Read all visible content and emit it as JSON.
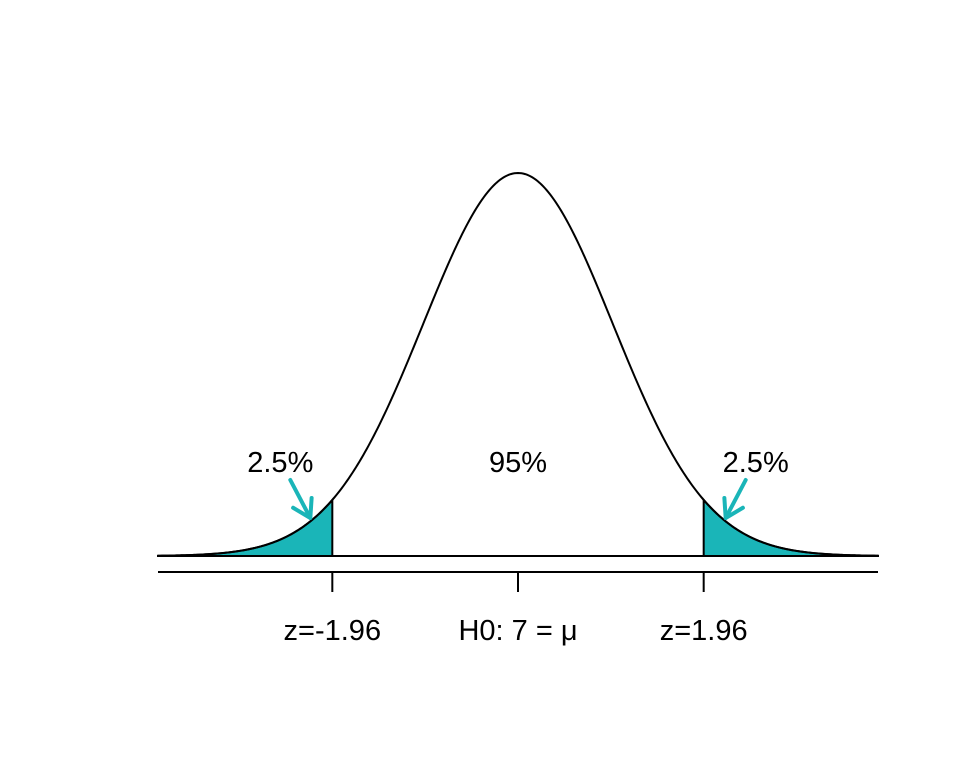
{
  "chart_data": {
    "type": "area",
    "title": "",
    "distribution": "normal",
    "mean": 0,
    "sd": 1,
    "xlim": [
      -3.8,
      3.8
    ],
    "critical_values": [
      -1.96,
      1.96
    ],
    "x_ticks": [
      {
        "value": -1.96,
        "label": "z=-1.96"
      },
      {
        "value": 0,
        "label": "H0: 7 = μ"
      },
      {
        "value": 1.96,
        "label": "z=1.96"
      }
    ],
    "regions": [
      {
        "name": "lower tail",
        "from": -3.8,
        "to": -1.96,
        "percent_label": "2.5%",
        "shaded": true
      },
      {
        "name": "middle",
        "from": -1.96,
        "to": 1.96,
        "percent_label": "95%",
        "shaded": false
      },
      {
        "name": "upper tail",
        "from": 1.96,
        "to": 3.8,
        "percent_label": "2.5%",
        "shaded": true
      }
    ],
    "colors": {
      "tail_fill": "#1ab5b8",
      "arrow": "#1ab5b8",
      "curve": "#000000"
    }
  }
}
